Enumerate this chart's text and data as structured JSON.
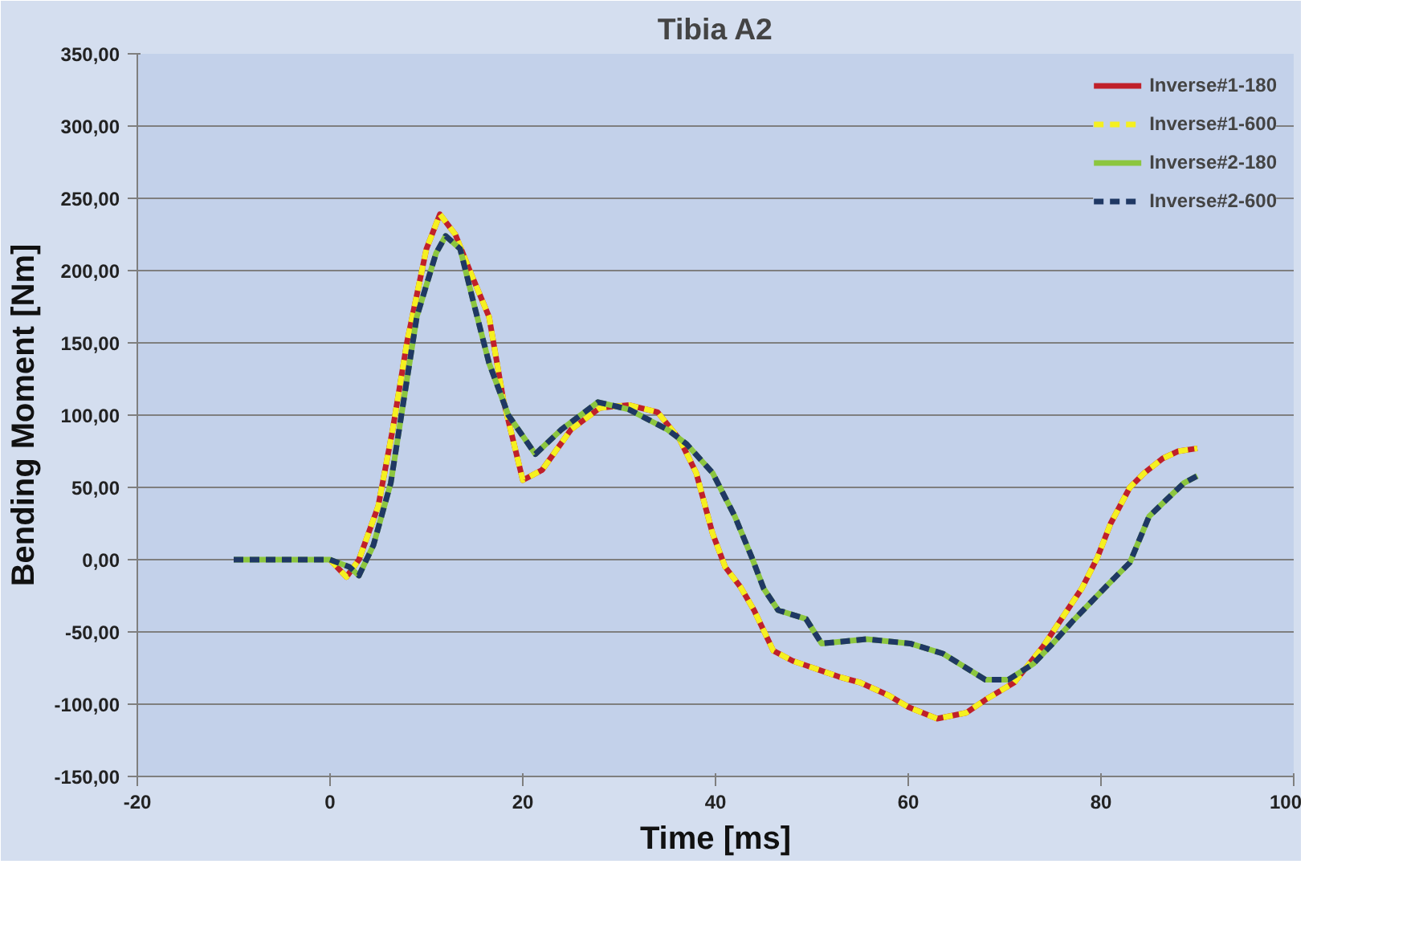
{
  "chart_data": {
    "type": "line",
    "title": "Tibia A2",
    "xlabel": "Time [ms]",
    "ylabel": "Bending Moment [Nm]",
    "xlim": [
      -20,
      100
    ],
    "xticks": [
      -20,
      0,
      20,
      40,
      60,
      80,
      100
    ],
    "ylim": [
      -150,
      350
    ],
    "yticks": [
      {
        "value": -150,
        "label": "-150,00"
      },
      {
        "value": -100,
        "label": "-100,00"
      },
      {
        "value": -50,
        "label": "-50,00"
      },
      {
        "value": 0,
        "label": "0,00"
      },
      {
        "value": 50,
        "label": "50,00"
      },
      {
        "value": 100,
        "label": "100,00"
      },
      {
        "value": 150,
        "label": "150,00"
      },
      {
        "value": 200,
        "label": "200,00"
      },
      {
        "value": 250,
        "label": "250,00"
      },
      {
        "value": 300,
        "label": "300,00"
      },
      {
        "value": 350,
        "label": "350,00"
      }
    ],
    "grid": "y",
    "legend": "top right",
    "marker": "none",
    "series": [
      {
        "name": "Inverse#1-180",
        "color": "#c0202a",
        "line_style": "solid",
        "x": [
          0,
          1.7,
          3,
          5,
          6.5,
          8,
          10,
          11.4,
          13,
          14.5,
          16.5,
          18,
          20,
          22,
          25,
          28,
          31,
          34,
          36.3,
          38,
          39.7,
          41,
          42.6,
          44,
          46,
          48,
          52.8,
          55,
          58,
          60,
          63,
          66,
          68,
          71,
          74,
          76,
          78,
          79.6,
          81,
          83,
          84.5,
          86.4,
          88,
          90
        ],
        "values": [
          0,
          -12,
          0,
          37,
          90,
          151,
          215,
          239,
          225,
          200,
          168,
          110,
          55,
          62,
          90,
          105,
          107,
          102,
          83,
          60,
          18,
          -5,
          -19,
          -35,
          -63,
          -70,
          -81,
          -85,
          -94,
          -102,
          -110,
          -106,
          -97,
          -85,
          -60,
          -40,
          -20,
          1,
          25,
          50,
          60,
          70,
          75,
          77
        ]
      },
      {
        "name": "Inverse#1-600",
        "color": "#f5f020",
        "line_style": "dashed",
        "x": [
          0,
          1.7,
          3,
          5,
          6.5,
          8,
          10,
          11.4,
          13,
          14.5,
          16.5,
          18,
          20,
          22,
          25,
          28,
          31,
          34,
          36.3,
          38,
          39.7,
          41,
          42.6,
          44,
          46,
          48,
          52.8,
          55,
          58,
          60,
          63,
          66,
          68,
          71,
          74,
          76,
          78,
          79.6,
          81,
          83,
          84.5,
          86.4,
          88,
          90
        ],
        "values": [
          0,
          -12,
          0,
          37,
          90,
          151,
          215,
          239,
          225,
          200,
          168,
          110,
          55,
          62,
          90,
          105,
          107,
          102,
          83,
          60,
          18,
          -5,
          -19,
          -35,
          -63,
          -70,
          -81,
          -85,
          -94,
          -102,
          -110,
          -106,
          -97,
          -85,
          -60,
          -40,
          -20,
          1,
          25,
          50,
          60,
          70,
          75,
          77
        ]
      },
      {
        "name": "Inverse#2-180",
        "color": "#8cc63f",
        "line_style": "solid",
        "x": [
          -10,
          -5,
          0,
          2,
          3,
          4.5,
          6.3,
          9,
          11,
          12,
          13.5,
          15,
          16.5,
          18.5,
          21.3,
          24,
          27.8,
          31,
          35,
          37,
          39.7,
          42,
          43.8,
          45,
          46.5,
          49.4,
          51,
          55.7,
          60.2,
          63.6,
          68,
          70.4,
          73,
          75,
          77,
          79.6,
          81.5,
          83,
          85,
          88.6,
          90
        ],
        "values": [
          0,
          0,
          0,
          -5,
          -11,
          10,
          53,
          168,
          212,
          224,
          215,
          175,
          136,
          100,
          73,
          90,
          109,
          104,
          90,
          80,
          60,
          30,
          1,
          -20,
          -35,
          -41,
          -58,
          -55,
          -58,
          -65,
          -83,
          -83,
          -72,
          -58,
          -43,
          -25,
          -12,
          -2,
          30,
          53,
          58
        ]
      },
      {
        "name": "Inverse#2-600",
        "color": "#1f3864",
        "line_style": "dashed",
        "x": [
          -10,
          -5,
          0,
          2,
          3,
          4.5,
          6.3,
          9,
          11,
          12,
          13.5,
          15,
          16.5,
          18.5,
          21.3,
          24,
          27.8,
          31,
          35,
          37,
          39.7,
          42,
          43.8,
          45,
          46.5,
          49.4,
          51,
          55.7,
          60.2,
          63.6,
          68,
          70.4,
          73,
          75,
          77,
          79.6,
          81.5,
          83,
          85,
          88.6,
          90
        ],
        "values": [
          0,
          0,
          0,
          -5,
          -11,
          10,
          53,
          168,
          212,
          224,
          215,
          175,
          136,
          100,
          73,
          90,
          109,
          104,
          90,
          80,
          60,
          30,
          1,
          -20,
          -35,
          -41,
          -58,
          -55,
          -58,
          -65,
          -83,
          -83,
          -72,
          -58,
          -43,
          -25,
          -12,
          -2,
          30,
          53,
          58
        ]
      }
    ]
  }
}
